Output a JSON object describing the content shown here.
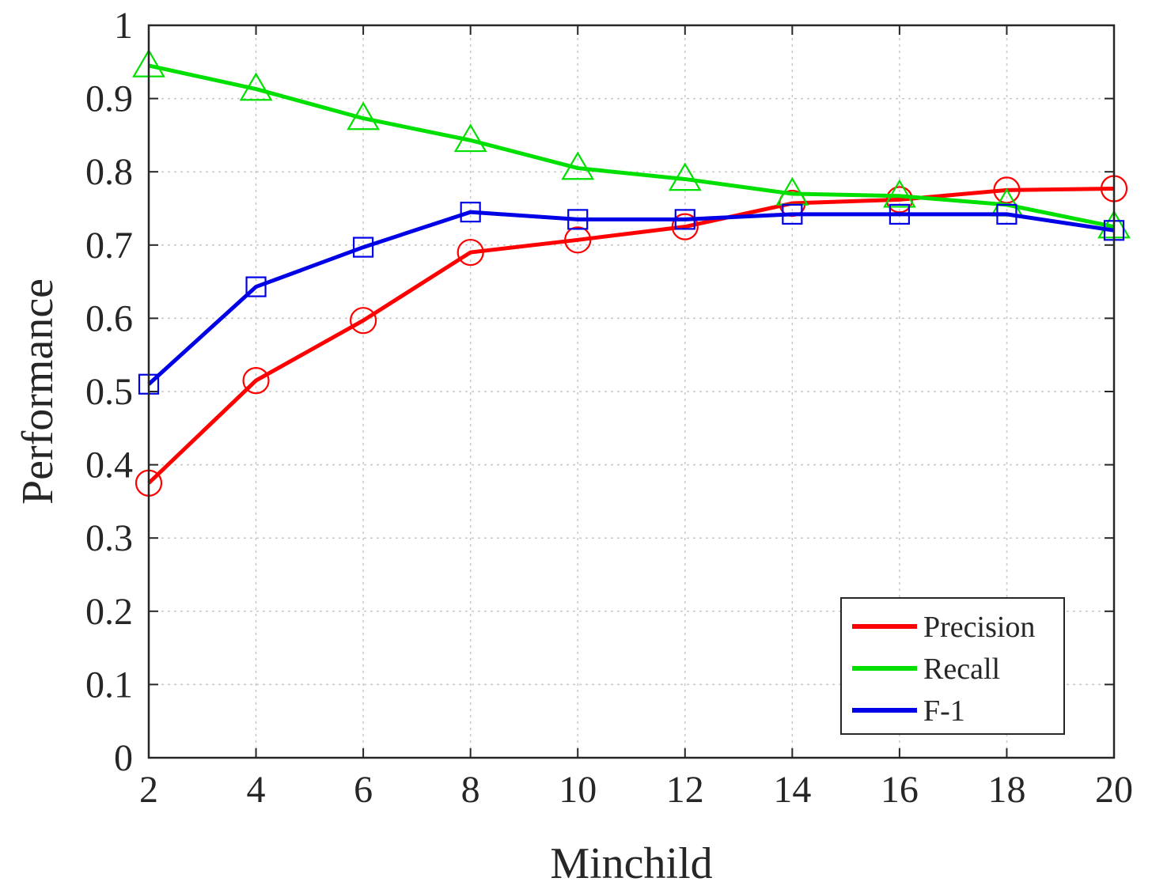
{
  "chart_data": {
    "type": "line",
    "title": "",
    "xlabel": "Minchild",
    "ylabel": "Performance",
    "x": [
      2,
      4,
      6,
      8,
      10,
      12,
      14,
      16,
      18,
      20
    ],
    "xticks": [
      "2",
      "4",
      "6",
      "8",
      "10",
      "12",
      "14",
      "16",
      "18",
      "20"
    ],
    "yticks": [
      "0",
      "0.1",
      "0.2",
      "0.3",
      "0.4",
      "0.5",
      "0.6",
      "0.7",
      "0.8",
      "0.9",
      "1"
    ],
    "xlim": [
      2,
      20
    ],
    "ylim": [
      0,
      1
    ],
    "grid": true,
    "legend_position": "bottom-right",
    "series": [
      {
        "name": "Precision",
        "color": "#ff0000",
        "marker": "circle",
        "values": [
          0.375,
          0.515,
          0.597,
          0.69,
          0.707,
          0.725,
          0.757,
          0.762,
          0.775,
          0.777
        ]
      },
      {
        "name": "Recall",
        "color": "#00e000",
        "marker": "triangle",
        "values": [
          0.945,
          0.913,
          0.873,
          0.843,
          0.805,
          0.79,
          0.77,
          0.767,
          0.755,
          0.725
        ]
      },
      {
        "name": "F-1",
        "color": "#0000e6",
        "marker": "square",
        "values": [
          0.51,
          0.643,
          0.697,
          0.745,
          0.735,
          0.735,
          0.742,
          0.742,
          0.742,
          0.72
        ]
      }
    ]
  }
}
